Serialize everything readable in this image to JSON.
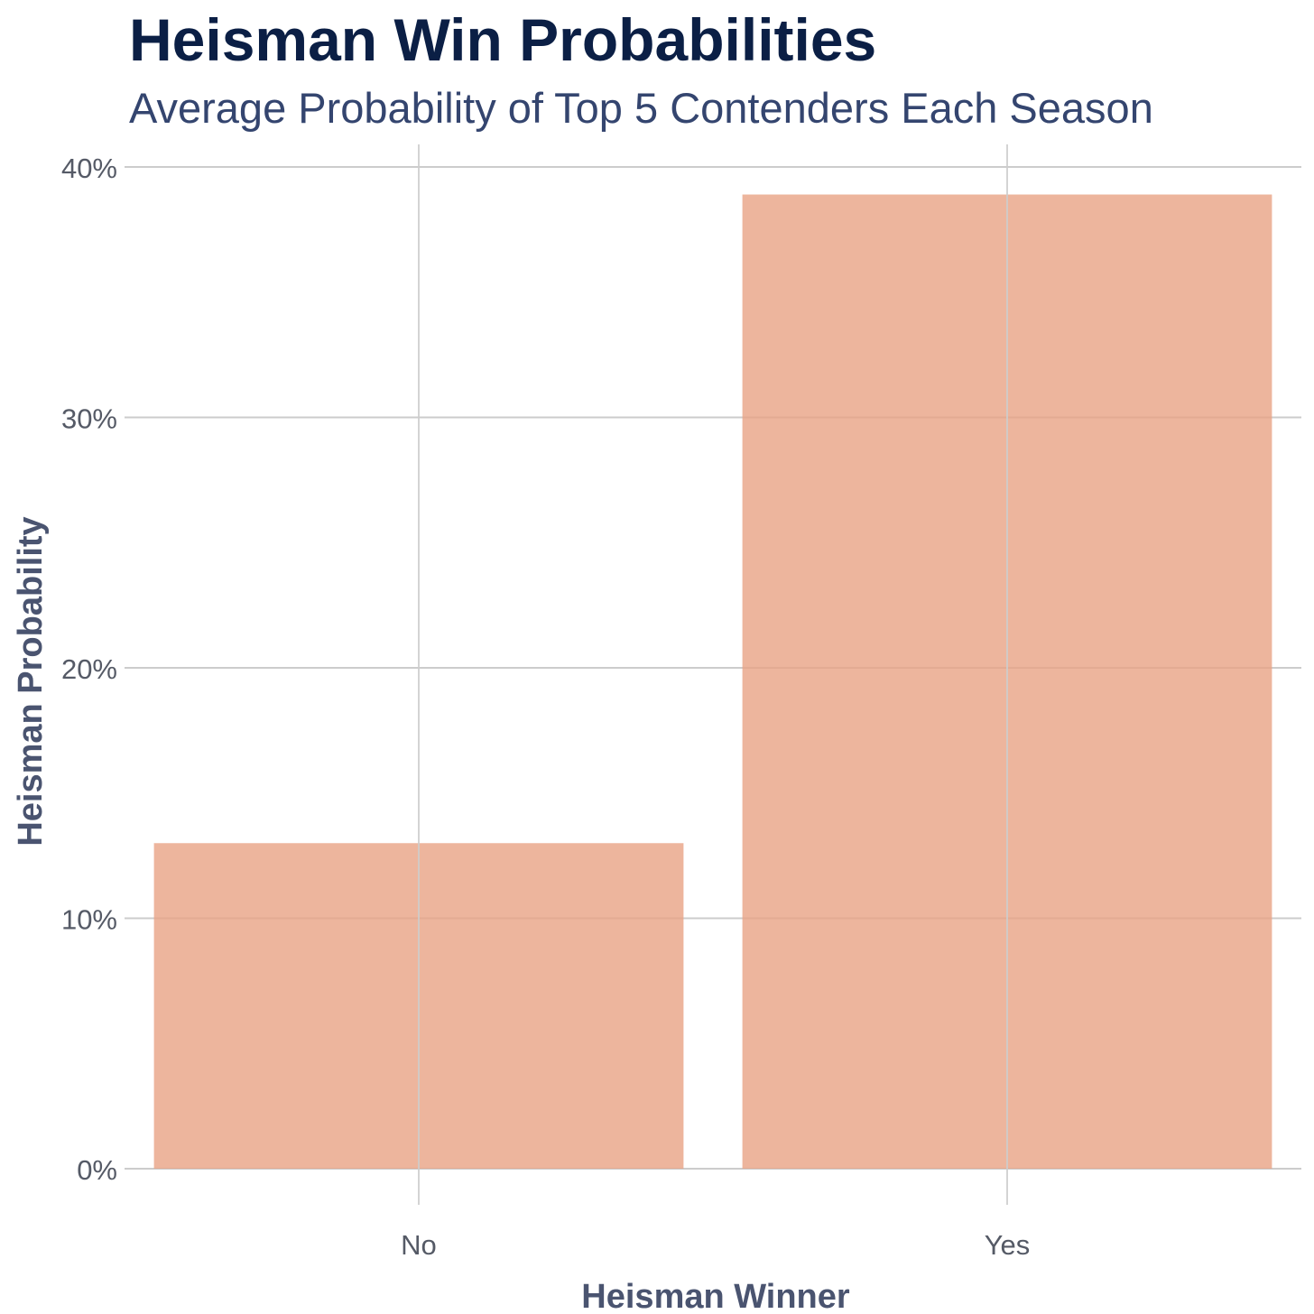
{
  "chart_data": {
    "type": "bar",
    "title": "Heisman Win Probabilities",
    "subtitle": "Average Probability of Top 5 Contenders Each Season",
    "xlabel": "Heisman Winner",
    "ylabel": "Heisman Probability",
    "categories": [
      "No",
      "Yes"
    ],
    "values": [
      13.0,
      38.9
    ],
    "ylim": [
      0,
      40
    ],
    "yticks": [
      0,
      10,
      20,
      30,
      40
    ],
    "ytick_labels": [
      "0%",
      "10%",
      "20%",
      "30%",
      "40%"
    ],
    "grid": true,
    "legend": "none",
    "colors": {
      "bar": "#e9a385",
      "grid": "#cccccc",
      "title": "#0b1f45",
      "subtitle": "#34456f",
      "axis_title": "#4a5470",
      "tick": "#555a66"
    }
  }
}
